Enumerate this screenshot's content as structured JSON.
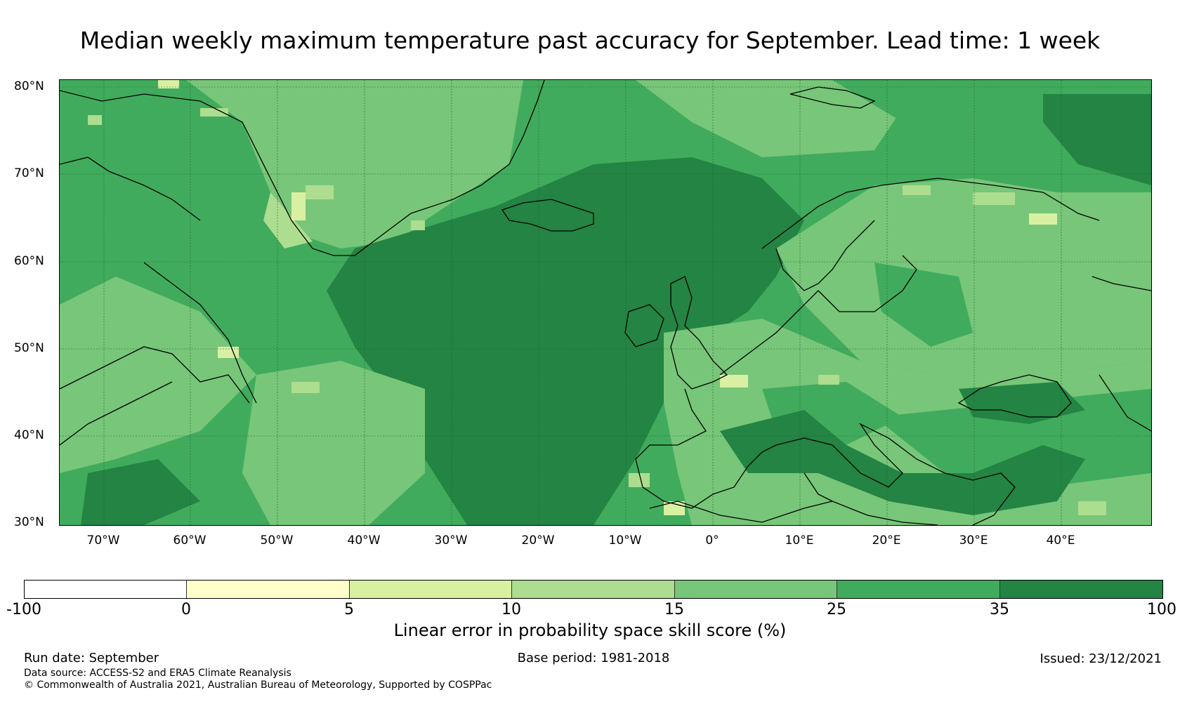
{
  "title": "Median weekly maximum temperature past accuracy for September. Lead time: 1 week",
  "map": {
    "lat_labels": [
      "80°N",
      "70°N",
      "60°N",
      "50°N",
      "40°N",
      "30°N"
    ],
    "lon_labels": [
      "70°W",
      "60°W",
      "50°W",
      "40°W",
      "30°W",
      "20°W",
      "10°W",
      "0°",
      "10°E",
      "20°E",
      "30°E",
      "40°E"
    ],
    "colors": [
      "#ffffff",
      "#ffffcc",
      "#d9f0a3",
      "#addd8e",
      "#78c679",
      "#41ab5d",
      "#238443"
    ]
  },
  "colorbar": {
    "ticks": [
      "-100",
      "0",
      "5",
      "10",
      "15",
      "25",
      "35",
      "100"
    ],
    "colors": [
      "#ffffff",
      "#ffffcc",
      "#d9f0a3",
      "#addd8e",
      "#78c679",
      "#41ab5d",
      "#238443"
    ],
    "label": "Linear error in probability space skill score (%)"
  },
  "footer": {
    "run_date": "Run date: September",
    "base_period": "Base period: 1981-2018",
    "issued": "Issued: 23/12/2021",
    "data_source": "Data source: ACCESS-S2 and ERA5 Climate Reanalysis",
    "copyright": "© Commonwealth of Australia 2021, Australian Bureau of Meteorology, Supported by COSPPac"
  }
}
